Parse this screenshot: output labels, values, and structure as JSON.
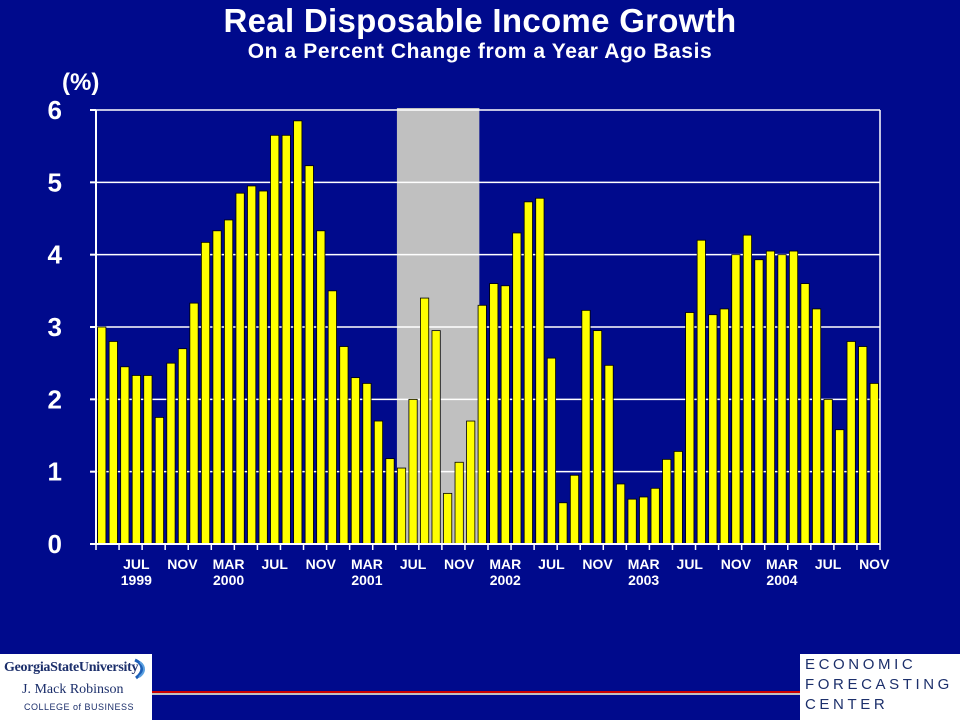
{
  "title": "Real Disposable Income Growth",
  "subtitle": "On a Percent Change from a Year Ago Basis",
  "colors": {
    "background": "#000a8c",
    "bar": "#ffff00",
    "recession": "#c0c0c0",
    "grid": "#ffffff"
  },
  "footer": {
    "left_line1": "GeorgiaStateUniversity",
    "left_line2": "J. Mack Robinson",
    "left_line3": "COLLEGE of BUSINESS",
    "right_line1": "ECONOMIC",
    "right_line2": "FORECASTING",
    "right_line3": "CENTER"
  },
  "chart_data": {
    "type": "bar",
    "title": "Real Disposable Income Growth",
    "subtitle": "On a Percent Change from a Year Ago Basis",
    "ylabel": "(%)",
    "ylim": [
      0,
      6
    ],
    "yticks": [
      0,
      1,
      2,
      3,
      4,
      5,
      6
    ],
    "grid": true,
    "recession_shading": {
      "start_index": 26,
      "end_index": 33
    },
    "x_tick_labels": [
      {
        "index": 3,
        "month": "JUL",
        "year": "1999"
      },
      {
        "index": 7,
        "month": "NOV",
        "year": ""
      },
      {
        "index": 11,
        "month": "MAR",
        "year": "2000"
      },
      {
        "index": 15,
        "month": "JUL",
        "year": ""
      },
      {
        "index": 19,
        "month": "NOV",
        "year": ""
      },
      {
        "index": 23,
        "month": "MAR",
        "year": "2001"
      },
      {
        "index": 27,
        "month": "JUL",
        "year": ""
      },
      {
        "index": 31,
        "month": "NOV",
        "year": ""
      },
      {
        "index": 35,
        "month": "MAR",
        "year": "2002"
      },
      {
        "index": 39,
        "month": "JUL",
        "year": ""
      },
      {
        "index": 43,
        "month": "NOV",
        "year": ""
      },
      {
        "index": 47,
        "month": "MAR",
        "year": "2003"
      },
      {
        "index": 51,
        "month": "JUL",
        "year": ""
      },
      {
        "index": 55,
        "month": "NOV",
        "year": ""
      },
      {
        "index": 59,
        "month": "MAR",
        "year": "2004"
      },
      {
        "index": 63,
        "month": "JUL",
        "year": ""
      },
      {
        "index": 67,
        "month": "NOV",
        "year": ""
      }
    ],
    "categories": [
      "1999-04",
      "1999-05",
      "1999-06",
      "1999-07",
      "1999-08",
      "1999-09",
      "1999-10",
      "1999-11",
      "1999-12",
      "2000-01",
      "2000-02",
      "2000-03",
      "2000-04",
      "2000-05",
      "2000-06",
      "2000-07",
      "2000-08",
      "2000-09",
      "2000-10",
      "2000-11",
      "2000-12",
      "2001-01",
      "2001-02",
      "2001-03",
      "2001-04",
      "2001-05",
      "2001-06",
      "2001-07",
      "2001-08",
      "2001-09",
      "2001-10",
      "2001-11",
      "2001-12",
      "2002-01",
      "2002-02",
      "2002-03",
      "2002-04",
      "2002-05",
      "2002-06",
      "2002-07",
      "2002-08",
      "2002-09",
      "2002-10",
      "2002-11",
      "2002-12",
      "2003-01",
      "2003-02",
      "2003-03",
      "2003-04",
      "2003-05",
      "2003-06",
      "2003-07",
      "2003-08",
      "2003-09",
      "2003-10",
      "2003-11",
      "2003-12",
      "2004-01",
      "2004-02",
      "2004-03",
      "2004-04",
      "2004-05",
      "2004-06",
      "2004-07",
      "2004-08",
      "2004-09",
      "2004-10",
      "2004-11"
    ],
    "values": [
      3.0,
      2.8,
      2.45,
      2.33,
      2.33,
      1.75,
      2.5,
      2.7,
      3.33,
      4.17,
      4.33,
      4.48,
      4.85,
      4.95,
      4.88,
      5.65,
      5.65,
      5.85,
      5.23,
      4.33,
      3.5,
      2.73,
      2.3,
      2.22,
      1.7,
      1.18,
      1.05,
      2.0,
      3.4,
      2.95,
      0.7,
      1.13,
      1.7,
      3.3,
      3.6,
      3.57,
      4.3,
      4.73,
      4.78,
      2.57,
      0.57,
      0.95,
      3.23,
      2.95,
      2.47,
      0.83,
      0.62,
      0.65,
      0.77,
      1.17,
      1.28,
      3.2,
      4.2,
      3.17,
      3.25,
      4.0,
      4.27,
      3.93,
      4.05,
      4.0,
      4.05,
      3.6,
      3.25,
      2.0,
      1.58,
      2.8,
      2.73,
      2.22
    ]
  }
}
